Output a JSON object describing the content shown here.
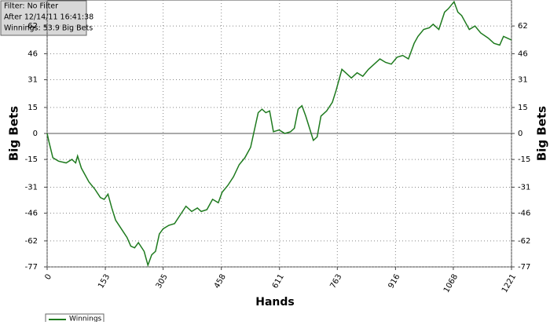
{
  "chart_data": {
    "type": "line",
    "annotations": [
      "Filter: No Filter",
      "After 12/14/11 16:41:38",
      "Winnings: 53.9 Big Bets"
    ],
    "x_label": "Hands",
    "y_label": "Big Bets",
    "x": [
      0,
      5,
      15,
      30,
      50,
      65,
      75,
      80,
      90,
      110,
      125,
      140,
      150,
      160,
      170,
      180,
      195,
      210,
      220,
      230,
      240,
      255,
      265,
      275,
      285,
      295,
      305,
      320,
      335,
      350,
      365,
      380,
      395,
      405,
      420,
      435,
      450,
      460,
      475,
      490,
      505,
      520,
      535,
      545,
      555,
      565,
      575,
      585,
      595,
      610,
      625,
      640,
      650,
      660,
      670,
      680,
      690,
      700,
      710,
      720,
      735,
      750,
      760,
      775,
      785,
      800,
      815,
      830,
      845,
      860,
      875,
      890,
      905,
      920,
      935,
      950,
      965,
      975,
      990,
      1005,
      1015,
      1030,
      1045,
      1055,
      1070,
      1080,
      1090,
      1100,
      1110,
      1125,
      1140,
      1160,
      1175,
      1190,
      1200,
      1210,
      1221
    ],
    "series": [
      {
        "name": "Winnings",
        "color": "#1e7a1e",
        "values": [
          0,
          -5,
          -14,
          -16,
          -17,
          -15,
          -17,
          -13,
          -20,
          -28,
          -32,
          -37,
          -38,
          -35,
          -43,
          -50,
          -55,
          -60,
          -65,
          -66,
          -63,
          -68,
          -76,
          -70,
          -68,
          -58,
          -55,
          -53,
          -52,
          -47,
          -42,
          -45,
          -43,
          -45,
          -44,
          -38,
          -40,
          -34,
          -30,
          -25,
          -18,
          -14,
          -8,
          2,
          12,
          14,
          12,
          13,
          1,
          2,
          0,
          1,
          3,
          14,
          16,
          10,
          3,
          -4,
          -2,
          10,
          13,
          18,
          25,
          37,
          35,
          32,
          35,
          33,
          37,
          40,
          43,
          41,
          40,
          44,
          45,
          43,
          52,
          56,
          60,
          61,
          63,
          60,
          70,
          72,
          76,
          70,
          68,
          64,
          60,
          62,
          58,
          55,
          52,
          51,
          56,
          55,
          53.9
        ]
      }
    ],
    "xlim": [
      0,
      1221
    ],
    "xticks": [
      0,
      153,
      305,
      458,
      611,
      763,
      916,
      1068,
      1221
    ],
    "ylim": [
      -77,
      77
    ],
    "yticks": [
      -77,
      -62,
      -46,
      -31,
      -15,
      0,
      15,
      31,
      46,
      62
    ],
    "grid": true
  }
}
